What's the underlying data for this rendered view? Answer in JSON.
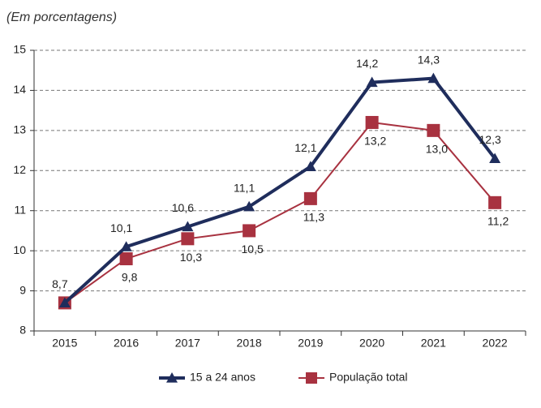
{
  "chart_data": {
    "type": "line",
    "subtitle": "(Em porcentagens)",
    "categories": [
      "2015",
      "2016",
      "2017",
      "2018",
      "2019",
      "2020",
      "2021",
      "2022"
    ],
    "series": [
      {
        "name": "15 a 24 anos",
        "color": "#1f2d5c",
        "marker": "triangle",
        "values": [
          8.7,
          10.1,
          10.6,
          11.1,
          12.1,
          14.2,
          14.3,
          12.3
        ],
        "value_labels": [
          "8,7",
          "10,1",
          "10,6",
          "11,1",
          "12,1",
          "14,2",
          "14,3",
          "12,3"
        ]
      },
      {
        "name": "População total",
        "color": "#a83240",
        "marker": "square",
        "values": [
          8.7,
          9.8,
          10.3,
          10.5,
          11.3,
          13.2,
          13.0,
          11.2
        ],
        "value_labels": [
          null,
          "9,8",
          "10,3",
          "10,5",
          "11,3",
          "13,2",
          "13,0",
          "11,2"
        ]
      }
    ],
    "ylim": [
      8,
      15
    ],
    "yticks": [
      8,
      9,
      10,
      11,
      12,
      13,
      14,
      15
    ],
    "grid": true,
    "legend": "bottom"
  }
}
